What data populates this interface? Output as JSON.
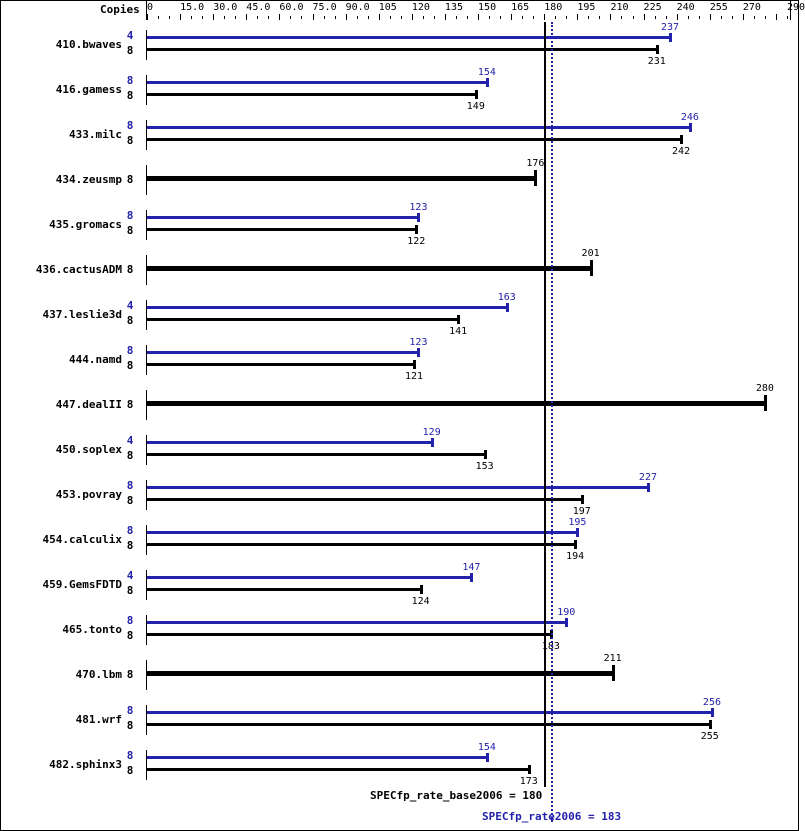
{
  "header": {
    "copies_label": "Copies"
  },
  "axis": {
    "ticks": [
      "0",
      "15.0",
      "30.0",
      "45.0",
      "60.0",
      "75.0",
      "90.0",
      "105",
      "120",
      "135",
      "150",
      "165",
      "180",
      "195",
      "210",
      "225",
      "240",
      "255",
      "270",
      "290"
    ],
    "min": 0,
    "max": 290
  },
  "benchmarks": [
    {
      "name": "410.bwaves",
      "peak_copies": "4",
      "base_copies": "8",
      "peak": "237",
      "base": "231"
    },
    {
      "name": "416.gamess",
      "peak_copies": "8",
      "base_copies": "8",
      "peak": "154",
      "base": "149"
    },
    {
      "name": "433.milc",
      "peak_copies": "8",
      "base_copies": "8",
      "peak": "246",
      "base": "242"
    },
    {
      "name": "434.zeusmp",
      "peak_copies": null,
      "base_copies": "8",
      "peak": null,
      "base": "176"
    },
    {
      "name": "435.gromacs",
      "peak_copies": "8",
      "base_copies": "8",
      "peak": "123",
      "base": "122"
    },
    {
      "name": "436.cactusADM",
      "peak_copies": null,
      "base_copies": "8",
      "peak": null,
      "base": "201"
    },
    {
      "name": "437.leslie3d",
      "peak_copies": "4",
      "base_copies": "8",
      "peak": "163",
      "base": "141"
    },
    {
      "name": "444.namd",
      "peak_copies": "8",
      "base_copies": "8",
      "peak": "123",
      "base": "121"
    },
    {
      "name": "447.dealII",
      "peak_copies": null,
      "base_copies": "8",
      "peak": null,
      "base": "280"
    },
    {
      "name": "450.soplex",
      "peak_copies": "4",
      "base_copies": "8",
      "peak": "129",
      "base": "153"
    },
    {
      "name": "453.povray",
      "peak_copies": "8",
      "base_copies": "8",
      "peak": "227",
      "base": "197"
    },
    {
      "name": "454.calculix",
      "peak_copies": "8",
      "base_copies": "8",
      "peak": "195",
      "base": "194"
    },
    {
      "name": "459.GemsFDTD",
      "peak_copies": "4",
      "base_copies": "8",
      "peak": "147",
      "base": "124"
    },
    {
      "name": "465.tonto",
      "peak_copies": "8",
      "base_copies": "8",
      "peak": "190",
      "base": "183"
    },
    {
      "name": "470.lbm",
      "peak_copies": null,
      "base_copies": "8",
      "peak": null,
      "base": "211"
    },
    {
      "name": "481.wrf",
      "peak_copies": "8",
      "base_copies": "8",
      "peak": "256",
      "base": "255"
    },
    {
      "name": "482.sphinx3",
      "peak_copies": "8",
      "base_copies": "8",
      "peak": "154",
      "base": "173"
    }
  ],
  "summary": {
    "base_label": "SPECfp_rate_base2006 = 180",
    "peak_label": "SPECfp_rate2006 = 183"
  },
  "colors": {
    "peak": "#2222aa",
    "base": "#000000"
  },
  "chart_data": {
    "type": "bar",
    "title": "",
    "xlabel": "",
    "ylabel": "",
    "orientation": "horizontal",
    "xlim": [
      0,
      290
    ],
    "grid": false,
    "categories": [
      "410.bwaves",
      "416.gamess",
      "433.milc",
      "434.zeusmp",
      "435.gromacs",
      "436.cactusADM",
      "437.leslie3d",
      "444.namd",
      "447.dealII",
      "450.soplex",
      "453.povray",
      "454.calculix",
      "459.GemsFDTD",
      "465.tonto",
      "470.lbm",
      "481.wrf",
      "482.sphinx3"
    ],
    "series": [
      {
        "name": "SPECfp_rate2006 (peak)",
        "color": "#2222aa",
        "values": [
          237,
          154,
          246,
          null,
          123,
          null,
          163,
          123,
          null,
          129,
          227,
          195,
          147,
          190,
          null,
          256,
          154
        ],
        "copies": [
          4,
          8,
          8,
          null,
          8,
          null,
          4,
          8,
          null,
          4,
          8,
          8,
          4,
          8,
          null,
          8,
          8
        ]
      },
      {
        "name": "SPECfp_rate_base2006 (base)",
        "color": "#000000",
        "values": [
          231,
          149,
          242,
          176,
          122,
          201,
          141,
          121,
          280,
          153,
          197,
          194,
          124,
          183,
          211,
          255,
          173
        ],
        "copies": [
          8,
          8,
          8,
          8,
          8,
          8,
          8,
          8,
          8,
          8,
          8,
          8,
          8,
          8,
          8,
          8,
          8
        ]
      }
    ],
    "reference_lines": [
      {
        "label": "SPECfp_rate_base2006 = 180",
        "value": 180,
        "style": "solid",
        "color": "#000000"
      },
      {
        "label": "SPECfp_rate2006 = 183",
        "value": 183,
        "style": "dotted",
        "color": "#2222aa"
      }
    ],
    "tick_labels": [
      "0",
      "15.0",
      "30.0",
      "45.0",
      "60.0",
      "75.0",
      "90.0",
      "105",
      "120",
      "135",
      "150",
      "165",
      "180",
      "195",
      "210",
      "225",
      "240",
      "255",
      "270",
      "290"
    ]
  }
}
